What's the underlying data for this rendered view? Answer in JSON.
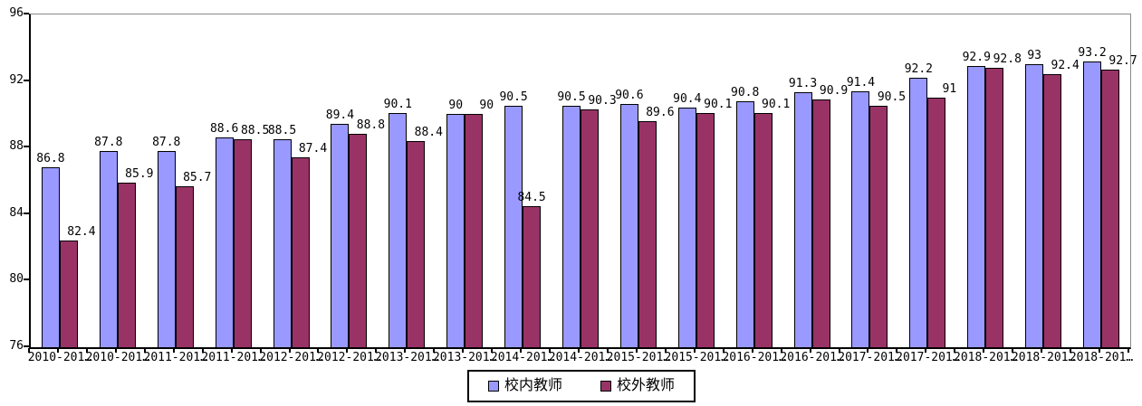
{
  "chart_data": {
    "type": "bar",
    "title": "",
    "xlabel": "",
    "ylabel": "",
    "ylim": [
      76,
      96
    ],
    "yticks": [
      76,
      80,
      84,
      88,
      92,
      96
    ],
    "grid": false,
    "legend_position": "bottom",
    "categories": [
      "2010-201…",
      "2010-201…",
      "2011-201…",
      "2011-201…",
      "2012-201…",
      "2012-201…",
      "2013-201…",
      "2013-201…",
      "2014-201…",
      "2014-201…",
      "2015-201…",
      "2015-201…",
      "2016-201…",
      "2016-201…",
      "2017-201…",
      "2017-201…",
      "2018-201…",
      "2018-201…",
      "2018-201…"
    ],
    "series": [
      {
        "name": "校内教师",
        "color": "#9999FF",
        "values": [
          86.8,
          87.8,
          87.8,
          88.6,
          88.5,
          89.4,
          90.1,
          90,
          90.5,
          90.5,
          90.6,
          90.4,
          90.8,
          91.3,
          91.4,
          92.2,
          92.9,
          93,
          93.2
        ],
        "labels": [
          "86.8",
          "87.8",
          "87.8",
          "88.6",
          "88.5",
          "89.4",
          "90.1",
          "90",
          "90.5",
          "90.5",
          "90.6",
          "90.4",
          "90.8",
          "91.3",
          "91.4",
          "92.2",
          "92.9",
          "93",
          "93.2"
        ]
      },
      {
        "name": "校外教师",
        "color": "#993366",
        "values": [
          82.4,
          85.9,
          85.7,
          88.5,
          87.4,
          88.8,
          88.4,
          90,
          84.5,
          90.3,
          89.6,
          90.1,
          90.1,
          90.9,
          90.5,
          91,
          92.8,
          92.4,
          92.7
        ],
        "labels": [
          "82.4",
          "85.9",
          "85.7",
          "88.5",
          "87.4",
          "88.8",
          "88.4",
          "90",
          "84.5",
          "90.3",
          "89.6",
          "90.1",
          "90.1",
          "90.9",
          "90.5",
          "91",
          "92.8",
          "92.4",
          "92.7"
        ]
      }
    ]
  },
  "legend": {
    "items": [
      {
        "label": "校内教师",
        "color": "#9999FF"
      },
      {
        "label": "校外教师",
        "color": "#993366"
      }
    ]
  },
  "colors": {
    "axis": "#000000",
    "plot_border_top_right": "#8A8A8A",
    "background": "#FFFFFF",
    "text": "#000000"
  }
}
